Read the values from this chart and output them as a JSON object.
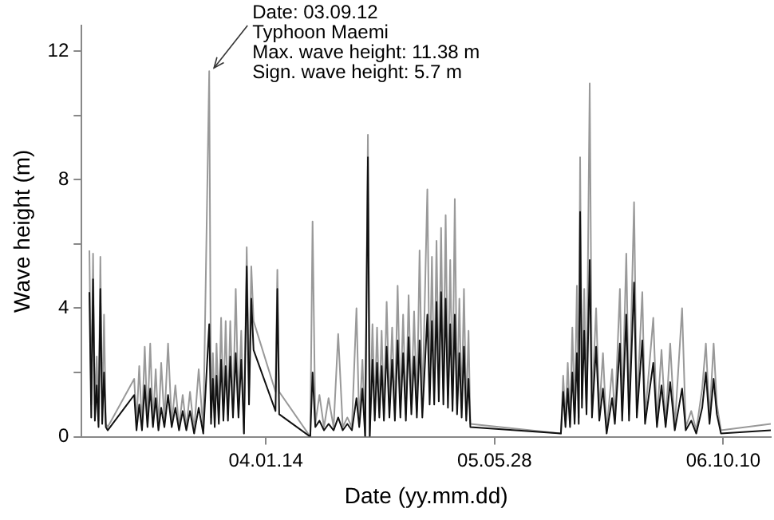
{
  "chart_data": {
    "type": "line",
    "xlabel": "Date (yy.mm.dd)",
    "ylabel": "Wave height (m)",
    "xlim": [
      "2002-12-07",
      "2007-01-22"
    ],
    "xticks": [
      {
        "value": "2004-01-14",
        "label": "04.01.14"
      },
      {
        "value": "2005-05-28",
        "label": "05.05.28"
      },
      {
        "value": "2006-10-10",
        "label": "06.10.10"
      }
    ],
    "ylim": [
      0,
      12.8
    ],
    "yticks": [
      0,
      {
        "value": 2,
        "label": null
      },
      4,
      {
        "value": 6,
        "label": null
      },
      8,
      {
        "value": 10,
        "label": null
      },
      12
    ],
    "grid": false,
    "legend": false,
    "marker": "none",
    "line_style": "solid",
    "annotations": [
      {
        "text": "Date: 03.09.12\nTyphoon Maemi\nMax. wave height: 11.38 m\nSign. wave height: 5.7 m",
        "x": "2003-09-12",
        "y": 11.38
      }
    ],
    "x": [
      "2002-12-24",
      "2002-12-28",
      "2003-01-01",
      "2003-01-05",
      "2003-01-09",
      "2003-01-13",
      "2003-01-17",
      "2003-01-21",
      "2003-01-25",
      "2003-01-29",
      "2003-02-02",
      "2003-04-01",
      "2003-04-06",
      "2003-04-12",
      "2003-04-18",
      "2003-04-24",
      "2003-04-30",
      "2003-05-06",
      "2003-05-12",
      "2003-05-18",
      "2003-05-24",
      "2003-05-30",
      "2003-06-06",
      "2003-06-14",
      "2003-06-22",
      "2003-06-30",
      "2003-07-08",
      "2003-07-16",
      "2003-07-24",
      "2003-08-01",
      "2003-08-10",
      "2003-08-20",
      "2003-08-30",
      "2003-09-12",
      "2003-09-16",
      "2003-09-20",
      "2003-09-24",
      "2003-09-28",
      "2003-10-03",
      "2003-10-08",
      "2003-10-13",
      "2003-10-18",
      "2003-10-23",
      "2003-10-28",
      "2003-11-03",
      "2003-11-09",
      "2003-11-15",
      "2003-11-21",
      "2003-11-27",
      "2003-12-03",
      "2003-12-08",
      "2003-12-13",
      "2003-12-18",
      "2004-02-04",
      "2004-02-08",
      "2004-02-12",
      "2004-04-20",
      "2004-04-25",
      "2004-05-01",
      "2004-05-10",
      "2004-05-20",
      "2004-05-30",
      "2004-06-10",
      "2004-06-20",
      "2004-06-30",
      "2004-07-10",
      "2004-07-20",
      "2004-07-30",
      "2004-08-05",
      "2004-08-12",
      "2004-08-18",
      "2004-08-24",
      "2004-08-28",
      "2004-09-03",
      "2004-09-08",
      "2004-09-13",
      "2004-09-18",
      "2004-09-23",
      "2004-09-28",
      "2004-10-04",
      "2004-10-10",
      "2004-10-16",
      "2004-10-22",
      "2004-10-28",
      "2004-11-03",
      "2004-11-09",
      "2004-11-15",
      "2004-11-21",
      "2004-11-27",
      "2004-12-03",
      "2004-12-09",
      "2004-12-15",
      "2004-12-21",
      "2005-01-01",
      "2005-01-06",
      "2005-01-11",
      "2005-01-16",
      "2005-01-21",
      "2005-01-26",
      "2005-01-31",
      "2005-02-05",
      "2005-02-10",
      "2005-02-15",
      "2005-02-20",
      "2005-02-25",
      "2005-03-02",
      "2005-03-07",
      "2005-03-12",
      "2005-03-17",
      "2005-03-22",
      "2005-03-27",
      "2005-04-01",
      "2005-04-05",
      "2005-10-20",
      "2005-10-25",
      "2005-10-30",
      "2005-11-04",
      "2005-11-09",
      "2005-11-14",
      "2005-11-19",
      "2005-11-24",
      "2005-11-28",
      "2005-12-01",
      "2005-12-05",
      "2005-12-10",
      "2005-12-15",
      "2005-12-22",
      "2005-12-27",
      "2006-01-05",
      "2006-01-12",
      "2006-01-20",
      "2006-01-28",
      "2006-02-09",
      "2006-02-15",
      "2006-02-26",
      "2006-03-03",
      "2006-03-12",
      "2006-03-18",
      "2006-03-29",
      "2006-04-04",
      "2006-04-16",
      "2006-04-22",
      "2006-05-10",
      "2006-05-18",
      "2006-05-28",
      "2006-06-06",
      "2006-06-16",
      "2006-06-26",
      "2006-07-12",
      "2006-07-20",
      "2006-08-01",
      "2006-08-12",
      "2006-08-25",
      "2006-09-02",
      "2006-09-10",
      "2006-09-19",
      "2006-09-26",
      "2006-10-05",
      "2007-01-22"
    ],
    "series": [
      {
        "color": "#999999",
        "values": [
          5.8,
          1.0,
          5.7,
          0.8,
          2.5,
          0.5,
          5.6,
          0.6,
          3.8,
          0.4,
          0.3,
          1.8,
          0.4,
          2.2,
          0.3,
          2.8,
          0.5,
          2.9,
          0.4,
          2.1,
          0.3,
          2.3,
          0.5,
          2.9,
          0.4,
          1.6,
          0.3,
          1.3,
          0.3,
          1.4,
          0.2,
          2.1,
          0.2,
          11.38,
          0.6,
          2.6,
          0.5,
          2.9,
          0.6,
          3.7,
          0.8,
          3.6,
          0.7,
          3.6,
          0.8,
          4.6,
          0.9,
          3.3,
          0.1,
          5.9,
          1.5,
          5.3,
          3.6,
          1.4,
          5.2,
          1.4,
          0.0,
          6.7,
          0.4,
          1.3,
          0.3,
          1.2,
          0.3,
          3.2,
          0.3,
          0.6,
          0.3,
          4.0,
          0.4,
          2.4,
          0.0,
          9.4,
          0.0,
          3.5,
          0.8,
          3.4,
          0.9,
          3.3,
          0.7,
          4.2,
          1.0,
          3.4,
          0.8,
          4.7,
          0.9,
          3.8,
          0.7,
          4.4,
          1.0,
          3.9,
          0.8,
          5.8,
          0.9,
          7.7,
          1.5,
          5.6,
          1.4,
          6.1,
          1.6,
          6.5,
          1.5,
          6.9,
          1.3,
          5.5,
          1.2,
          7.4,
          1.0,
          4.3,
          0.9,
          4.6,
          0.7,
          3.3,
          0.4,
          0.1,
          1.9,
          0.5,
          2.3,
          0.4,
          3.4,
          0.6,
          4.7,
          0.6,
          8.7,
          1.2,
          4.6,
          1.0,
          11.0,
          1.0,
          4.0,
          0.8,
          2.6,
          0.2,
          2.1,
          0.6,
          4.6,
          0.8,
          5.7,
          0.7,
          7.3,
          0.9,
          4.5,
          0.6,
          3.7,
          0.5,
          2.7,
          0.4,
          2.9,
          0.3,
          4.0,
          0.3,
          0.8,
          0.2,
          1.5,
          2.9,
          0.6,
          2.9,
          1.0,
          0.2,
          0.4
        ]
      },
      {
        "color": "#111111",
        "values": [
          4.5,
          0.6,
          4.9,
          0.5,
          1.6,
          0.3,
          4.6,
          0.4,
          2.0,
          0.3,
          0.2,
          1.3,
          0.2,
          1.0,
          0.2,
          1.6,
          0.3,
          1.5,
          0.3,
          1.2,
          0.2,
          0.9,
          0.3,
          1.3,
          0.3,
          0.9,
          0.2,
          0.8,
          0.2,
          0.8,
          0.1,
          0.9,
          0.1,
          3.5,
          0.4,
          1.8,
          0.3,
          1.9,
          0.4,
          2.4,
          0.5,
          2.2,
          0.5,
          2.5,
          0.6,
          2.6,
          0.6,
          2.4,
          0.1,
          5.3,
          1.0,
          4.3,
          2.7,
          0.8,
          4.6,
          0.7,
          0.0,
          2.0,
          0.3,
          0.5,
          0.2,
          0.4,
          0.2,
          0.6,
          0.2,
          0.4,
          0.2,
          1.2,
          0.3,
          1.5,
          0.0,
          8.7,
          0.0,
          2.4,
          0.5,
          2.3,
          0.6,
          2.2,
          0.5,
          2.8,
          0.6,
          2.4,
          0.5,
          3.0,
          0.6,
          2.6,
          0.5,
          3.1,
          0.7,
          2.5,
          0.6,
          3.0,
          0.6,
          3.8,
          1.0,
          3.6,
          1.0,
          4.2,
          1.1,
          4.5,
          1.0,
          4.3,
          0.9,
          3.5,
          0.8,
          3.8,
          0.7,
          2.6,
          0.6,
          2.8,
          0.5,
          1.8,
          0.3,
          0.1,
          1.4,
          0.3,
          1.5,
          0.3,
          2.0,
          0.4,
          2.6,
          0.4,
          7.0,
          0.9,
          3.3,
          0.7,
          5.5,
          0.6,
          2.8,
          0.5,
          1.5,
          0.1,
          1.2,
          0.4,
          2.9,
          0.5,
          3.8,
          0.5,
          4.8,
          0.6,
          3.0,
          0.4,
          2.3,
          0.3,
          1.6,
          0.3,
          1.7,
          0.2,
          1.5,
          0.2,
          0.5,
          0.1,
          0.9,
          2.0,
          0.4,
          1.8,
          0.7,
          0.1,
          0.2
        ]
      }
    ]
  }
}
